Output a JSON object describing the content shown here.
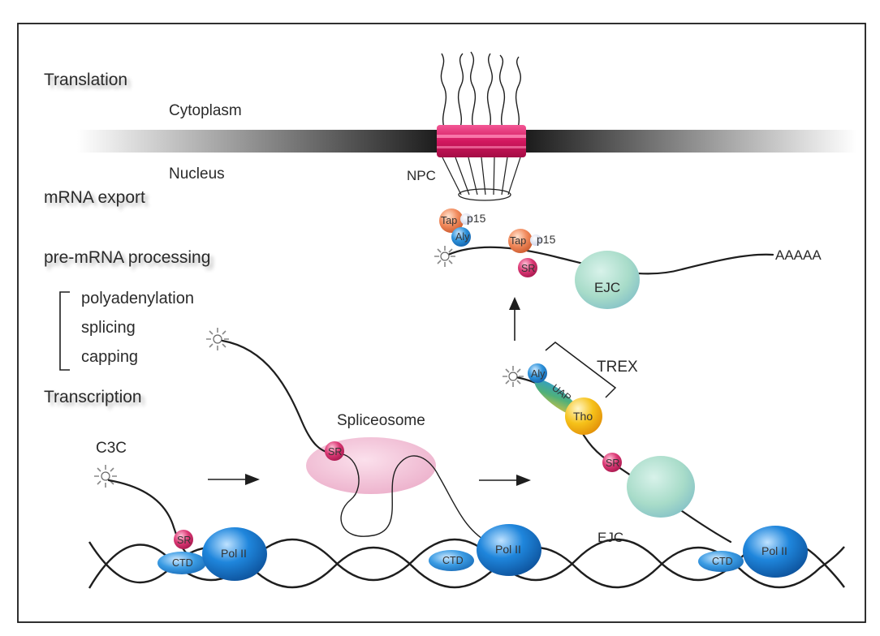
{
  "stages": {
    "translation": "Translation",
    "mrna_export": "mRNA export",
    "pre_mrna_processing": "pre-mRNA processing",
    "transcription": "Transcription"
  },
  "processing_steps": [
    "polyadenylation",
    "splicing",
    "capping"
  ],
  "compartments": {
    "cytoplasm": "Cytoplasm",
    "nucleus": "Nucleus",
    "npc": "NPC"
  },
  "molecules": {
    "c3c": "C3C",
    "spliceosome": "Spliceosome",
    "trex": "TREX",
    "ejc": "EJC",
    "sr": "SR",
    "ctd": "CTD",
    "pol2": "Pol II",
    "tap": "Tap",
    "p15": "p15",
    "aly": "Aly",
    "uap": "UAP",
    "tho": "Tho",
    "polya": "AAAAA"
  },
  "colors": {
    "pol2": "#1f7fd1",
    "sr": "#d9336e",
    "npc": "#d81b6a",
    "tap": "#f08a5d",
    "aly": "#2a8fd6",
    "tho": "#f2b705",
    "uap": "#3fae7a",
    "ejc": "#9fd6c4",
    "spliceosome": "#f0b8cf",
    "membrane": "#2b2b2b"
  }
}
